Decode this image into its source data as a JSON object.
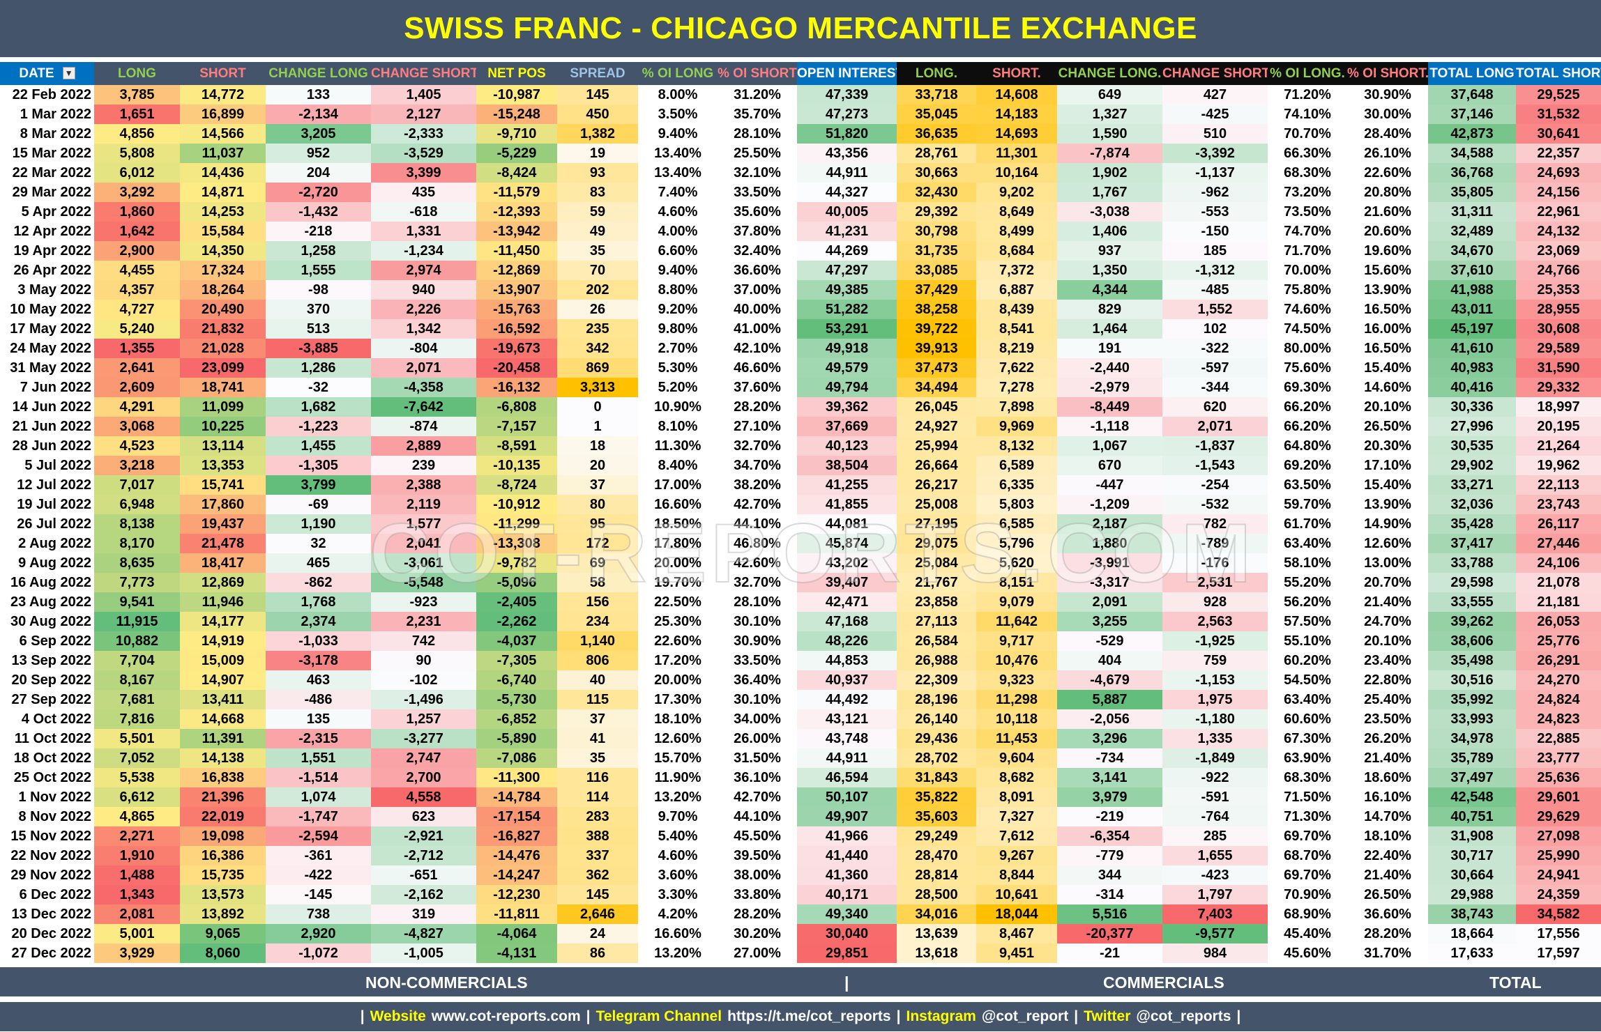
{
  "title": "SWISS FRANC - CHICAGO MERCANTILE EXCHANGE",
  "icons": {
    "filter": "filter-dropdown-icon"
  },
  "colors": {
    "header_slate": "#44546A",
    "header_blue": "#0070C0",
    "header_black": "#0D0D0D",
    "title_text": "#FFFF00",
    "scale_red": "#F8696B",
    "scale_yellow": "#FFEB84",
    "scale_green": "#63BE7B",
    "scale_white": "#FCFCFF",
    "scale_orange": "#FFC000"
  },
  "columns": [
    "DATE",
    "LONG",
    "SHORT",
    "CHANGE LONG",
    "CHANGE SHORT",
    "NET POS",
    "SPREAD",
    "% OI LONG",
    "% OI SHORT",
    "OPEN INTEREST",
    "LONG.",
    "SHORT.",
    "CHANGE LONG.",
    "CHANGE SHORT.",
    "% OI LONG.",
    "% OI SHORT.",
    "TOTAL LONG",
    "TOTAL SHORT"
  ],
  "rows": [
    [
      "22 Feb 2022",
      "3,785",
      "14,772",
      "133",
      "1,405",
      "-10,987",
      "145",
      "8.00%",
      "31.20%",
      "47,339",
      "33,718",
      "14,608",
      "649",
      "427",
      "71.20%",
      "30.90%",
      "37,648",
      "29,525"
    ],
    [
      "1 Mar 2022",
      "1,651",
      "16,899",
      "-2,134",
      "2,127",
      "-15,248",
      "450",
      "3.50%",
      "35.70%",
      "47,273",
      "35,045",
      "14,183",
      "1,327",
      "-425",
      "74.10%",
      "30.00%",
      "37,146",
      "31,532"
    ],
    [
      "8 Mar 2022",
      "4,856",
      "14,566",
      "3,205",
      "-2,333",
      "-9,710",
      "1,382",
      "9.40%",
      "28.10%",
      "51,820",
      "36,635",
      "14,693",
      "1,590",
      "510",
      "70.70%",
      "28.40%",
      "42,873",
      "30,641"
    ],
    [
      "15 Mar 2022",
      "5,808",
      "11,037",
      "952",
      "-3,529",
      "-5,229",
      "19",
      "13.40%",
      "25.50%",
      "43,356",
      "28,761",
      "11,301",
      "-7,874",
      "-3,392",
      "66.30%",
      "26.10%",
      "34,588",
      "22,357"
    ],
    [
      "22 Mar 2022",
      "6,012",
      "14,436",
      "204",
      "3,399",
      "-8,424",
      "93",
      "13.40%",
      "32.10%",
      "44,911",
      "30,663",
      "10,164",
      "1,902",
      "-1,137",
      "68.30%",
      "22.60%",
      "36,768",
      "24,693"
    ],
    [
      "29 Mar 2022",
      "3,292",
      "14,871",
      "-2,720",
      "435",
      "-11,579",
      "83",
      "7.40%",
      "33.50%",
      "44,327",
      "32,430",
      "9,202",
      "1,767",
      "-962",
      "73.20%",
      "20.80%",
      "35,805",
      "24,156"
    ],
    [
      "5 Apr 2022",
      "1,860",
      "14,253",
      "-1,432",
      "-618",
      "-12,393",
      "59",
      "4.60%",
      "35.60%",
      "40,005",
      "29,392",
      "8,649",
      "-3,038",
      "-553",
      "73.50%",
      "21.60%",
      "31,311",
      "22,961"
    ],
    [
      "12 Apr 2022",
      "1,642",
      "15,584",
      "-218",
      "1,331",
      "-13,942",
      "49",
      "4.00%",
      "37.80%",
      "41,231",
      "30,798",
      "8,499",
      "1,406",
      "-150",
      "74.70%",
      "20.60%",
      "32,489",
      "24,132"
    ],
    [
      "19 Apr 2022",
      "2,900",
      "14,350",
      "1,258",
      "-1,234",
      "-11,450",
      "35",
      "6.60%",
      "32.40%",
      "44,269",
      "31,735",
      "8,684",
      "937",
      "185",
      "71.70%",
      "19.60%",
      "34,670",
      "23,069"
    ],
    [
      "26 Apr 2022",
      "4,455",
      "17,324",
      "1,555",
      "2,974",
      "-12,869",
      "70",
      "9.40%",
      "36.60%",
      "47,297",
      "33,085",
      "7,372",
      "1,350",
      "-1,312",
      "70.00%",
      "15.60%",
      "37,610",
      "24,766"
    ],
    [
      "3 May 2022",
      "4,357",
      "18,264",
      "-98",
      "940",
      "-13,907",
      "202",
      "8.80%",
      "37.00%",
      "49,385",
      "37,429",
      "6,887",
      "4,344",
      "-485",
      "75.80%",
      "13.90%",
      "41,988",
      "25,353"
    ],
    [
      "10 May 2022",
      "4,727",
      "20,490",
      "370",
      "2,226",
      "-15,763",
      "26",
      "9.20%",
      "40.00%",
      "51,282",
      "38,258",
      "8,439",
      "829",
      "1,552",
      "74.60%",
      "16.50%",
      "43,011",
      "28,955"
    ],
    [
      "17 May 2022",
      "5,240",
      "21,832",
      "513",
      "1,342",
      "-16,592",
      "235",
      "9.80%",
      "41.00%",
      "53,291",
      "39,722",
      "8,541",
      "1,464",
      "102",
      "74.50%",
      "16.00%",
      "45,197",
      "30,608"
    ],
    [
      "24 May 2022",
      "1,355",
      "21,028",
      "-3,885",
      "-804",
      "-19,673",
      "342",
      "2.70%",
      "42.10%",
      "49,918",
      "39,913",
      "8,219",
      "191",
      "-322",
      "80.00%",
      "16.50%",
      "41,610",
      "29,589"
    ],
    [
      "31 May 2022",
      "2,641",
      "23,099",
      "1,286",
      "2,071",
      "-20,458",
      "869",
      "5.30%",
      "46.60%",
      "49,579",
      "37,473",
      "7,622",
      "-2,440",
      "-597",
      "75.60%",
      "15.40%",
      "40,983",
      "31,590"
    ],
    [
      "7 Jun 2022",
      "2,609",
      "18,741",
      "-32",
      "-4,358",
      "-16,132",
      "3,313",
      "5.20%",
      "37.60%",
      "49,794",
      "34,494",
      "7,278",
      "-2,979",
      "-344",
      "69.30%",
      "14.60%",
      "40,416",
      "29,332"
    ],
    [
      "14 Jun 2022",
      "4,291",
      "11,099",
      "1,682",
      "-7,642",
      "-6,808",
      "0",
      "10.90%",
      "28.20%",
      "39,362",
      "26,045",
      "7,898",
      "-8,449",
      "620",
      "66.20%",
      "20.10%",
      "30,336",
      "18,997"
    ],
    [
      "21 Jun 2022",
      "3,068",
      "10,225",
      "-1,223",
      "-874",
      "-7,157",
      "1",
      "8.10%",
      "27.10%",
      "37,669",
      "24,927",
      "9,969",
      "-1,118",
      "2,071",
      "66.20%",
      "26.50%",
      "27,996",
      "20,195"
    ],
    [
      "28 Jun 2022",
      "4,523",
      "13,114",
      "1,455",
      "2,889",
      "-8,591",
      "18",
      "11.30%",
      "32.70%",
      "40,123",
      "25,994",
      "8,132",
      "1,067",
      "-1,837",
      "64.80%",
      "20.30%",
      "30,535",
      "21,264"
    ],
    [
      "5 Jul 2022",
      "3,218",
      "13,353",
      "-1,305",
      "239",
      "-10,135",
      "20",
      "8.40%",
      "34.70%",
      "38,504",
      "26,664",
      "6,589",
      "670",
      "-1,543",
      "69.20%",
      "17.10%",
      "29,902",
      "19,962"
    ],
    [
      "12 Jul 2022",
      "7,017",
      "15,741",
      "3,799",
      "2,388",
      "-8,724",
      "37",
      "17.00%",
      "38.20%",
      "41,255",
      "26,217",
      "6,335",
      "-447",
      "-254",
      "63.50%",
      "15.40%",
      "33,271",
      "22,113"
    ],
    [
      "19 Jul 2022",
      "6,948",
      "17,860",
      "-69",
      "2,119",
      "-10,912",
      "80",
      "16.60%",
      "42.70%",
      "41,855",
      "25,008",
      "5,803",
      "-1,209",
      "-532",
      "59.70%",
      "13.90%",
      "32,036",
      "23,743"
    ],
    [
      "26 Jul 2022",
      "8,138",
      "19,437",
      "1,190",
      "1,577",
      "-11,299",
      "95",
      "18.50%",
      "44.10%",
      "44,081",
      "27,195",
      "6,585",
      "2,187",
      "782",
      "61.70%",
      "14.90%",
      "35,428",
      "26,117"
    ],
    [
      "2 Aug 2022",
      "8,170",
      "21,478",
      "32",
      "2,041",
      "-13,308",
      "172",
      "17.80%",
      "46.80%",
      "45,874",
      "29,075",
      "5,796",
      "1,880",
      "-789",
      "63.40%",
      "12.60%",
      "37,417",
      "27,446"
    ],
    [
      "9 Aug 2022",
      "8,635",
      "18,417",
      "465",
      "-3,061",
      "-9,782",
      "69",
      "20.00%",
      "42.60%",
      "43,202",
      "25,084",
      "5,620",
      "-3,991",
      "-176",
      "58.10%",
      "13.00%",
      "33,788",
      "24,106"
    ],
    [
      "16 Aug 2022",
      "7,773",
      "12,869",
      "-862",
      "-5,548",
      "-5,096",
      "58",
      "19.70%",
      "32.70%",
      "39,407",
      "21,767",
      "8,151",
      "-3,317",
      "2,531",
      "55.20%",
      "20.70%",
      "29,598",
      "21,078"
    ],
    [
      "23 Aug 2022",
      "9,541",
      "11,946",
      "1,768",
      "-923",
      "-2,405",
      "156",
      "22.50%",
      "28.10%",
      "42,471",
      "23,858",
      "9,079",
      "2,091",
      "928",
      "56.20%",
      "21.40%",
      "33,555",
      "21,181"
    ],
    [
      "30 Aug 2022",
      "11,915",
      "14,177",
      "2,374",
      "2,231",
      "-2,262",
      "234",
      "25.30%",
      "30.10%",
      "47,168",
      "27,113",
      "11,642",
      "3,255",
      "2,563",
      "57.50%",
      "24.70%",
      "39,262",
      "26,053"
    ],
    [
      "6 Sep 2022",
      "10,882",
      "14,919",
      "-1,033",
      "742",
      "-4,037",
      "1,140",
      "22.60%",
      "30.90%",
      "48,226",
      "26,584",
      "9,717",
      "-529",
      "-1,925",
      "55.10%",
      "20.10%",
      "38,606",
      "25,776"
    ],
    [
      "13 Sep 2022",
      "7,704",
      "15,009",
      "-3,178",
      "90",
      "-7,305",
      "806",
      "17.20%",
      "33.50%",
      "44,853",
      "26,988",
      "10,476",
      "404",
      "759",
      "60.20%",
      "23.40%",
      "35,498",
      "26,291"
    ],
    [
      "20 Sep 2022",
      "8,167",
      "14,907",
      "463",
      "-102",
      "-6,740",
      "40",
      "20.00%",
      "36.40%",
      "40,937",
      "22,309",
      "9,323",
      "-4,679",
      "-1,153",
      "54.50%",
      "22.80%",
      "30,516",
      "24,270"
    ],
    [
      "27 Sep 2022",
      "7,681",
      "13,411",
      "-486",
      "-1,496",
      "-5,730",
      "115",
      "17.30%",
      "30.10%",
      "44,492",
      "28,196",
      "11,298",
      "5,887",
      "1,975",
      "63.40%",
      "25.40%",
      "35,992",
      "24,824"
    ],
    [
      "4 Oct 2022",
      "7,816",
      "14,668",
      "135",
      "1,257",
      "-6,852",
      "37",
      "18.10%",
      "34.00%",
      "43,121",
      "26,140",
      "10,118",
      "-2,056",
      "-1,180",
      "60.60%",
      "23.50%",
      "33,993",
      "24,823"
    ],
    [
      "11 Oct 2022",
      "5,501",
      "11,391",
      "-2,315",
      "-3,277",
      "-5,890",
      "41",
      "12.60%",
      "26.00%",
      "43,748",
      "29,436",
      "11,453",
      "3,296",
      "1,335",
      "67.30%",
      "26.20%",
      "34,978",
      "22,885"
    ],
    [
      "18 Oct 2022",
      "7,052",
      "14,138",
      "1,551",
      "2,747",
      "-7,086",
      "35",
      "15.70%",
      "31.50%",
      "44,911",
      "28,702",
      "9,604",
      "-734",
      "-1,849",
      "63.90%",
      "21.40%",
      "35,789",
      "23,777"
    ],
    [
      "25 Oct 2022",
      "5,538",
      "16,838",
      "-1,514",
      "2,700",
      "-11,300",
      "116",
      "11.90%",
      "36.10%",
      "46,594",
      "31,843",
      "8,682",
      "3,141",
      "-922",
      "68.30%",
      "18.60%",
      "37,497",
      "25,636"
    ],
    [
      "1 Nov 2022",
      "6,612",
      "21,396",
      "1,074",
      "4,558",
      "-14,784",
      "114",
      "13.20%",
      "42.70%",
      "50,107",
      "35,822",
      "8,091",
      "3,979",
      "-591",
      "71.50%",
      "16.10%",
      "42,548",
      "29,601"
    ],
    [
      "8 Nov 2022",
      "4,865",
      "22,019",
      "-1,747",
      "623",
      "-17,154",
      "283",
      "9.70%",
      "44.10%",
      "49,907",
      "35,603",
      "7,327",
      "-219",
      "-764",
      "71.30%",
      "14.70%",
      "40,751",
      "29,629"
    ],
    [
      "15 Nov 2022",
      "2,271",
      "19,098",
      "-2,594",
      "-2,921",
      "-16,827",
      "388",
      "5.40%",
      "45.50%",
      "41,966",
      "29,249",
      "7,612",
      "-6,354",
      "285",
      "69.70%",
      "18.10%",
      "31,908",
      "27,098"
    ],
    [
      "22 Nov 2022",
      "1,910",
      "16,386",
      "-361",
      "-2,712",
      "-14,476",
      "337",
      "4.60%",
      "39.50%",
      "41,440",
      "28,470",
      "9,267",
      "-779",
      "1,655",
      "68.70%",
      "22.40%",
      "30,717",
      "25,990"
    ],
    [
      "29 Nov 2022",
      "1,488",
      "15,735",
      "-422",
      "-651",
      "-14,247",
      "362",
      "3.60%",
      "38.00%",
      "41,360",
      "28,814",
      "8,844",
      "344",
      "-423",
      "69.70%",
      "21.40%",
      "30,664",
      "24,941"
    ],
    [
      "6 Dec 2022",
      "1,343",
      "13,573",
      "-145",
      "-2,162",
      "-12,230",
      "145",
      "3.30%",
      "33.80%",
      "40,171",
      "28,500",
      "10,641",
      "-314",
      "1,797",
      "70.90%",
      "26.50%",
      "29,988",
      "24,359"
    ],
    [
      "13 Dec 2022",
      "2,081",
      "13,892",
      "738",
      "319",
      "-11,811",
      "2,646",
      "4.20%",
      "28.20%",
      "49,340",
      "34,016",
      "18,044",
      "5,516",
      "7,403",
      "68.90%",
      "36.60%",
      "38,743",
      "34,582"
    ],
    [
      "20 Dec 2022",
      "5,001",
      "9,065",
      "2,920",
      "-4,827",
      "-4,064",
      "24",
      "16.60%",
      "30.20%",
      "30,040",
      "13,639",
      "8,467",
      "-20,377",
      "-9,577",
      "45.40%",
      "28.20%",
      "18,664",
      "17,556"
    ],
    [
      "27 Dec 2022",
      "3,929",
      "8,060",
      "-1,072",
      "-1,005",
      "-4,131",
      "86",
      "13.20%",
      "27.00%",
      "29,851",
      "13,618",
      "9,451",
      "-21",
      "984",
      "45.60%",
      "31.70%",
      "17,633",
      "17,597"
    ]
  ],
  "watermark": "COT-REPORTS.COM",
  "sections": {
    "non_commercials": "NON-COMMERCIALS",
    "divider": "|",
    "commercials": "COMMERCIALS",
    "total": "TOTAL"
  },
  "footer": {
    "sep": "|",
    "website_label": "Website",
    "website": "www.cot-reports.com",
    "telegram_label": "Telegram Channel",
    "telegram": "https://t.me/cot_reports",
    "instagram_label": "Instagram",
    "instagram": "@cot_report",
    "twitter_label": "Twitter",
    "twitter": "@cot_reports"
  }
}
